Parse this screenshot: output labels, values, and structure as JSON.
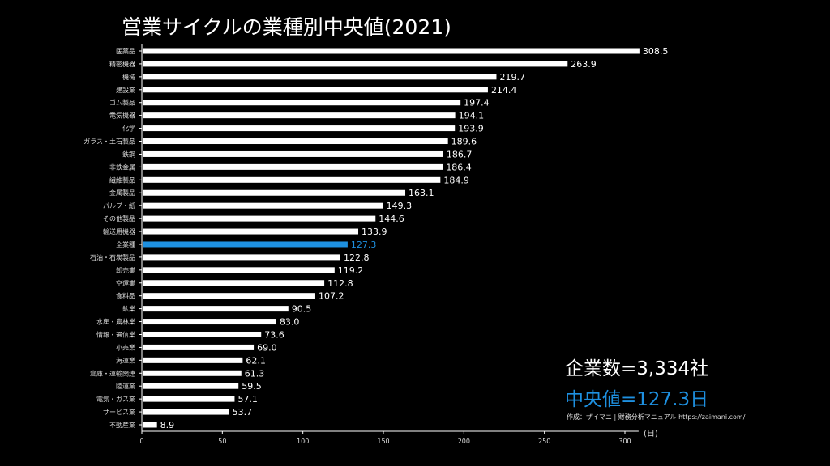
{
  "chart_data": {
    "type": "bar",
    "orientation": "horizontal",
    "title": "営業サイクルの業種別中央値(2021)",
    "xlabel": "(日)",
    "xlim": [
      0,
      308.5
    ],
    "xticks": [
      0,
      50,
      100,
      150,
      200,
      250,
      300
    ],
    "highlight_category": "全業種",
    "colors": {
      "bar": "#ffffff",
      "highlight": "#1e90e0",
      "axis": "#ffffff"
    },
    "categories": [
      "医薬品",
      "精密機器",
      "機械",
      "建設業",
      "ゴム製品",
      "電気機器",
      "化学",
      "ガラス・土石製品",
      "鉄鋼",
      "非鉄金属",
      "繊維製品",
      "金属製品",
      "パルプ・紙",
      "その他製品",
      "輸送用機器",
      "全業種",
      "石油・石炭製品",
      "卸売業",
      "空運業",
      "食料品",
      "鉱業",
      "水産・農林業",
      "情報・通信業",
      "小売業",
      "海運業",
      "倉庫・運輸関連",
      "陸運業",
      "電気・ガス業",
      "サービス業",
      "不動産業"
    ],
    "values": [
      308.5,
      263.9,
      219.7,
      214.4,
      197.4,
      194.1,
      193.9,
      189.6,
      186.7,
      186.4,
      184.9,
      163.1,
      149.3,
      144.6,
      133.9,
      127.3,
      122.8,
      119.2,
      112.8,
      107.2,
      90.5,
      83.0,
      73.6,
      69.0,
      62.1,
      61.3,
      59.5,
      57.1,
      53.7,
      8.9
    ]
  },
  "annotations": {
    "companies": "企業数=3,334社",
    "median": "中央値=127.3日",
    "credit": "作成：ザイマニ | 財務分析マニュアル https://zaimani.com/"
  }
}
